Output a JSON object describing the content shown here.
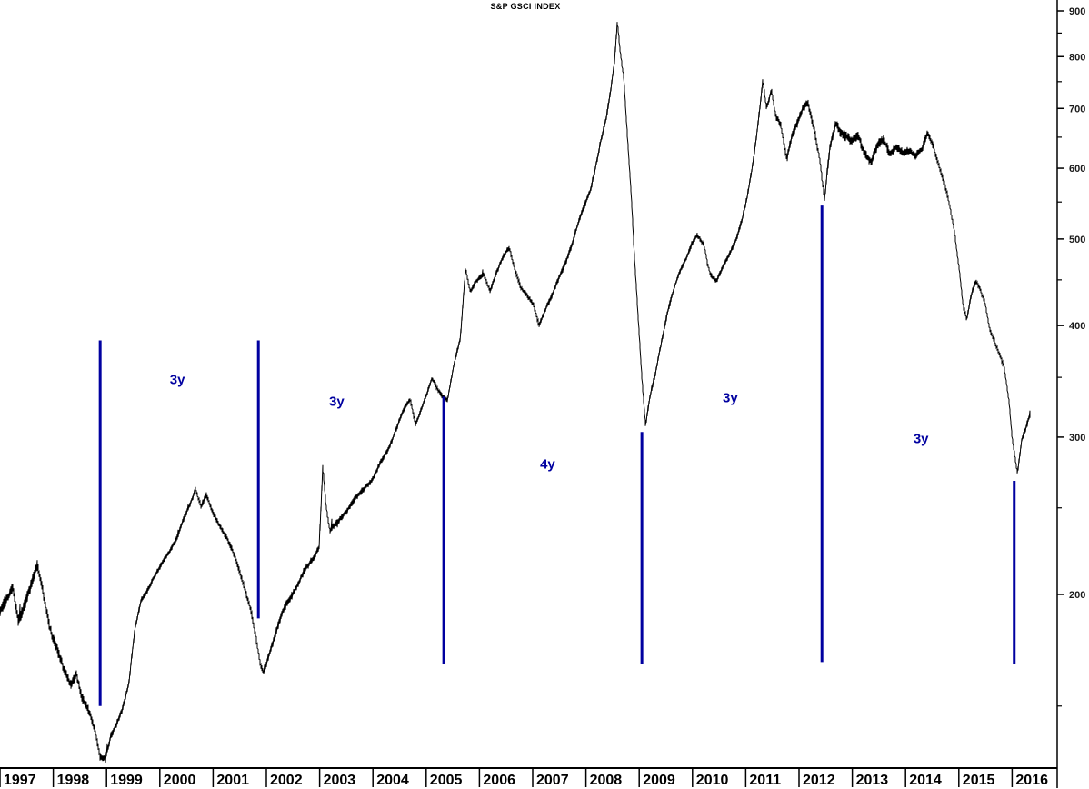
{
  "title": "S&P GSCI INDEX",
  "colors": {
    "background": "#FFFFFF",
    "series": "#000000",
    "axis": "#000000",
    "annotation": "#0000A0"
  },
  "chart_data": {
    "type": "line",
    "title": "S&P GSCI INDEX",
    "legend": "none",
    "grid": "off",
    "x_axis": {
      "label": "",
      "tick_labels": [
        "1997",
        "1998",
        "1999",
        "2000",
        "2001",
        "2002",
        "2003",
        "2004",
        "2005",
        "2006",
        "2007",
        "2008",
        "2009",
        "2010",
        "2011",
        "2012",
        "2013",
        "2014",
        "2015",
        "2016"
      ],
      "range": [
        1997.0,
        2016.85
      ]
    },
    "y_axis": {
      "label": "",
      "side": "right",
      "scale": "log",
      "major_ticks": [
        900,
        800,
        700,
        600,
        500,
        400,
        300,
        200
      ],
      "minor_ticks": [
        850,
        750,
        650,
        550,
        450,
        350,
        250,
        150
      ],
      "range": [
        128,
        920
      ]
    },
    "series": [
      {
        "name": "S&P GSCI INDEX",
        "color": "#000000",
        "style": "noisy-daily-line",
        "points": [
          [
            1997.0,
            193
          ],
          [
            1997.09,
            197
          ],
          [
            1997.17,
            200
          ],
          [
            1997.24,
            204
          ],
          [
            1997.34,
            188
          ],
          [
            1997.43,
            193
          ],
          [
            1997.56,
            202
          ],
          [
            1997.7,
            214
          ],
          [
            1997.82,
            199
          ],
          [
            1997.94,
            183
          ],
          [
            1998.06,
            174
          ],
          [
            1998.19,
            166
          ],
          [
            1998.33,
            160
          ],
          [
            1998.43,
            164
          ],
          [
            1998.54,
            153
          ],
          [
            1998.66,
            148
          ],
          [
            1998.78,
            141
          ],
          [
            1998.88,
            131
          ],
          [
            1998.98,
            130
          ],
          [
            1999.08,
            138
          ],
          [
            1999.18,
            143
          ],
          [
            1999.3,
            150
          ],
          [
            1999.42,
            160
          ],
          [
            1999.53,
            183
          ],
          [
            1999.65,
            198
          ],
          [
            1999.82,
            205
          ],
          [
            1999.99,
            212
          ],
          [
            2000.16,
            222
          ],
          [
            2000.33,
            232
          ],
          [
            2000.46,
            244
          ],
          [
            2000.57,
            254
          ],
          [
            2000.67,
            265
          ],
          [
            2000.77,
            252
          ],
          [
            2000.87,
            258
          ],
          [
            2000.98,
            247
          ],
          [
            2001.1,
            240
          ],
          [
            2001.23,
            232
          ],
          [
            2001.37,
            222
          ],
          [
            2001.49,
            213
          ],
          [
            2001.61,
            203
          ],
          [
            2001.71,
            193
          ],
          [
            2001.8,
            180
          ],
          [
            2001.88,
            168
          ],
          [
            2001.95,
            164
          ],
          [
            2002.05,
            172
          ],
          [
            2002.17,
            180
          ],
          [
            2002.31,
            190
          ],
          [
            2002.44,
            197
          ],
          [
            2002.58,
            205
          ],
          [
            2002.72,
            213
          ],
          [
            2002.85,
            219
          ],
          [
            2002.99,
            228
          ],
          [
            2003.06,
            280
          ],
          [
            2003.12,
            252
          ],
          [
            2003.19,
            235
          ],
          [
            2003.33,
            240
          ],
          [
            2003.47,
            246
          ],
          [
            2003.6,
            251
          ],
          [
            2003.74,
            258
          ],
          [
            2003.88,
            266
          ],
          [
            2004.01,
            272
          ],
          [
            2004.15,
            282
          ],
          [
            2004.29,
            292
          ],
          [
            2004.42,
            305
          ],
          [
            2004.56,
            318
          ],
          [
            2004.7,
            328
          ],
          [
            2004.8,
            310
          ],
          [
            2004.9,
            322
          ],
          [
            2005.01,
            335
          ],
          [
            2005.11,
            350
          ],
          [
            2005.21,
            342
          ],
          [
            2005.31,
            336
          ],
          [
            2005.4,
            332
          ],
          [
            2005.52,
            360
          ],
          [
            2005.64,
            385
          ],
          [
            2005.74,
            462
          ],
          [
            2005.83,
            435
          ],
          [
            2005.93,
            445
          ],
          [
            2006.08,
            455
          ],
          [
            2006.2,
            440
          ],
          [
            2006.32,
            462
          ],
          [
            2006.44,
            478
          ],
          [
            2006.56,
            490
          ],
          [
            2006.66,
            465
          ],
          [
            2006.78,
            440
          ],
          [
            2006.9,
            428
          ],
          [
            2007.02,
            418
          ],
          [
            2007.12,
            400
          ],
          [
            2007.24,
            418
          ],
          [
            2007.36,
            432
          ],
          [
            2007.48,
            452
          ],
          [
            2007.6,
            472
          ],
          [
            2007.72,
            492
          ],
          [
            2007.84,
            515
          ],
          [
            2007.96,
            540
          ],
          [
            2008.08,
            565
          ],
          [
            2008.18,
            600
          ],
          [
            2008.28,
            640
          ],
          [
            2008.38,
            680
          ],
          [
            2008.47,
            740
          ],
          [
            2008.54,
            800
          ],
          [
            2008.59,
            885
          ],
          [
            2008.64,
            820
          ],
          [
            2008.71,
            760
          ],
          [
            2008.78,
            650
          ],
          [
            2008.85,
            560
          ],
          [
            2008.91,
            480
          ],
          [
            2008.98,
            410
          ],
          [
            2009.05,
            350
          ],
          [
            2009.12,
            308
          ],
          [
            2009.2,
            330
          ],
          [
            2009.31,
            352
          ],
          [
            2009.41,
            380
          ],
          [
            2009.53,
            415
          ],
          [
            2009.65,
            440
          ],
          [
            2009.77,
            462
          ],
          [
            2009.89,
            480
          ],
          [
            2009.99,
            498
          ],
          [
            2010.09,
            505
          ],
          [
            2010.21,
            490
          ],
          [
            2010.33,
            455
          ],
          [
            2010.45,
            448
          ],
          [
            2010.57,
            462
          ],
          [
            2010.69,
            478
          ],
          [
            2010.81,
            500
          ],
          [
            2010.93,
            530
          ],
          [
            2011.03,
            560
          ],
          [
            2011.14,
            610
          ],
          [
            2011.24,
            680
          ],
          [
            2011.32,
            755
          ],
          [
            2011.39,
            700
          ],
          [
            2011.48,
            730
          ],
          [
            2011.56,
            680
          ],
          [
            2011.66,
            665
          ],
          [
            2011.77,
            615
          ],
          [
            2011.87,
            655
          ],
          [
            2011.97,
            675
          ],
          [
            2012.07,
            700
          ],
          [
            2012.17,
            715
          ],
          [
            2012.28,
            670
          ],
          [
            2012.38,
            620
          ],
          [
            2012.48,
            552
          ],
          [
            2012.58,
            630
          ],
          [
            2012.69,
            672
          ],
          [
            2012.79,
            655
          ],
          [
            2012.89,
            648
          ],
          [
            2012.99,
            640
          ],
          [
            2013.11,
            655
          ],
          [
            2013.23,
            630
          ],
          [
            2013.35,
            612
          ],
          [
            2013.47,
            636
          ],
          [
            2013.59,
            648
          ],
          [
            2013.71,
            622
          ],
          [
            2013.83,
            630
          ],
          [
            2013.95,
            618
          ],
          [
            2014.07,
            628
          ],
          [
            2014.19,
            622
          ],
          [
            2014.31,
            632
          ],
          [
            2014.41,
            658
          ],
          [
            2014.52,
            640
          ],
          [
            2014.62,
            610
          ],
          [
            2014.72,
            580
          ],
          [
            2014.82,
            545
          ],
          [
            2014.92,
            505
          ],
          [
            2015.01,
            460
          ],
          [
            2015.08,
            420
          ],
          [
            2015.15,
            405
          ],
          [
            2015.23,
            430
          ],
          [
            2015.32,
            448
          ],
          [
            2015.4,
            440
          ],
          [
            2015.49,
            428
          ],
          [
            2015.58,
            400
          ],
          [
            2015.67,
            385
          ],
          [
            2015.76,
            372
          ],
          [
            2015.85,
            360
          ],
          [
            2015.94,
            330
          ],
          [
            2016.0,
            300
          ],
          [
            2016.05,
            285
          ],
          [
            2016.1,
            272
          ],
          [
            2016.18,
            295
          ],
          [
            2016.26,
            305
          ],
          [
            2016.34,
            318
          ]
        ]
      }
    ],
    "annotations": {
      "color": "#0000A0",
      "cycle_low_lines": [
        {
          "x_year": 1998.88,
          "value_top": 385,
          "value_bottom": 150
        },
        {
          "x_year": 2001.85,
          "value_top": 385,
          "value_bottom": 188
        },
        {
          "x_year": 2005.33,
          "value_top": 333,
          "value_bottom": 167
        },
        {
          "x_year": 2009.05,
          "value_top": 304,
          "value_bottom": 167
        },
        {
          "x_year": 2012.43,
          "value_top": 545,
          "value_bottom": 168
        },
        {
          "x_year": 2016.04,
          "value_top": 268,
          "value_bottom": 167
        }
      ],
      "cycle_period_labels": [
        {
          "text": "3y",
          "x_year": 2000.33,
          "value": 348
        },
        {
          "text": "3y",
          "x_year": 2003.32,
          "value": 329
        },
        {
          "text": "4y",
          "x_year": 2007.28,
          "value": 280
        },
        {
          "text": "3y",
          "x_year": 2010.71,
          "value": 332
        },
        {
          "text": "3y",
          "x_year": 2014.29,
          "value": 299
        }
      ]
    }
  }
}
